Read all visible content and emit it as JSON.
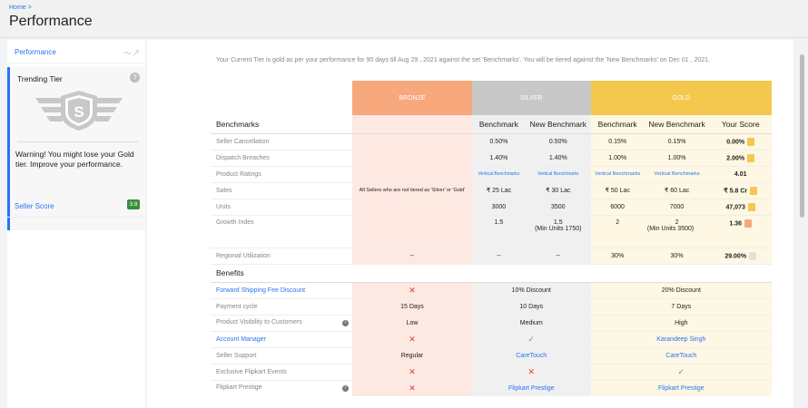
{
  "header": {
    "breadcrumb": "Home >",
    "title": "Performance"
  },
  "sidebar": {
    "performance_label": "Performance",
    "tier_title": "Trending Tier",
    "badge_letter": "S",
    "warning": "Warning! You might lose your Gold tier. Improve your performance.",
    "seller_score_label": "Seller Score",
    "seller_score_value": "3.8"
  },
  "notice": "Your Current Tier is gold as per your performance for 90 days till Aug 29 , 2021 against the set 'Benchmarks'. You will be tiered against the 'New Benchmarks' on Dec 01 , 2021.",
  "tiers": {
    "bronze": "BRONZE",
    "silver": "SILVER",
    "gold": "GOLD"
  },
  "benchmarks": {
    "section": "Benchmarks",
    "col_benchmark": "Benchmark",
    "col_new_benchmark": "New Benchmark",
    "col_score": "Your Score",
    "bronze_note": "All Sellers who are not tiered as 'Silver' or 'Gold'",
    "rows": [
      {
        "label": "Seller Cancellation",
        "s1": "0.50%",
        "s2": "0.50%",
        "g1": "0.15%",
        "g2": "0.15%",
        "score": "0.00%"
      },
      {
        "label": "Dispatch Breaches",
        "s1": "1.40%",
        "s2": "1.40%",
        "g1": "1.00%",
        "g2": "1.00%",
        "score": "2.00%"
      },
      {
        "label": "Product Ratings",
        "s1": "Vertical Benchmarks",
        "s2": "Vertical Benchmarks",
        "g1": "Vertical Benchmarks",
        "g2": "Vertical Benchmarks",
        "score": "4.01"
      },
      {
        "label": "Sales",
        "s1": "₹ 25 Lac",
        "s2": "₹ 30 Lac",
        "g1": "₹ 50 Lac",
        "g2": "₹ 60 Lac",
        "score": "₹ 5.8 Cr"
      },
      {
        "label": "Units",
        "s1": "3000",
        "s2": "3500",
        "g1": "6000",
        "g2": "7000",
        "score": "47,073"
      },
      {
        "label": "Growth Index",
        "s1": "1.5",
        "s2": "1.5",
        "g1": "2",
        "g2": "2",
        "score": "1.36"
      },
      {
        "label": "Regional Utilization",
        "b": "--",
        "s1": "--",
        "s2": "--",
        "g1": "30%",
        "g2": "30%",
        "score": "29.00%"
      }
    ],
    "silver_min_units": "(Min Units 1750)",
    "gold_min_units": "(Min Units 3500)"
  },
  "benefits": {
    "section": "Benefits",
    "rows": [
      {
        "label": "Forward Shipping Fee Discount",
        "bronze": "✕",
        "silver": "10% Discount",
        "gold": "20% Discount"
      },
      {
        "label": "Payment cycle",
        "bronze": "15 Days",
        "silver": "10 Days",
        "gold": "7 Days"
      },
      {
        "label": "Product Visibility to Customers",
        "bronze": "Low",
        "silver": "Medium",
        "gold": "High"
      },
      {
        "label": "Account Manager",
        "bronze": "✕",
        "silver": "✓",
        "gold": "Karandeep Singh"
      },
      {
        "label": "Seller Support",
        "bronze": "Regular",
        "silver": "CareTouch",
        "gold": "CareTouch"
      },
      {
        "label": "Exclusive Flipkart Events",
        "bronze": "✕",
        "silver": "✕",
        "gold": "✓"
      },
      {
        "label": "Flipkart Prestige",
        "bronze": "✕",
        "silver": "Flipkart Prestige",
        "gold": "Flipkart Prestige"
      }
    ]
  }
}
